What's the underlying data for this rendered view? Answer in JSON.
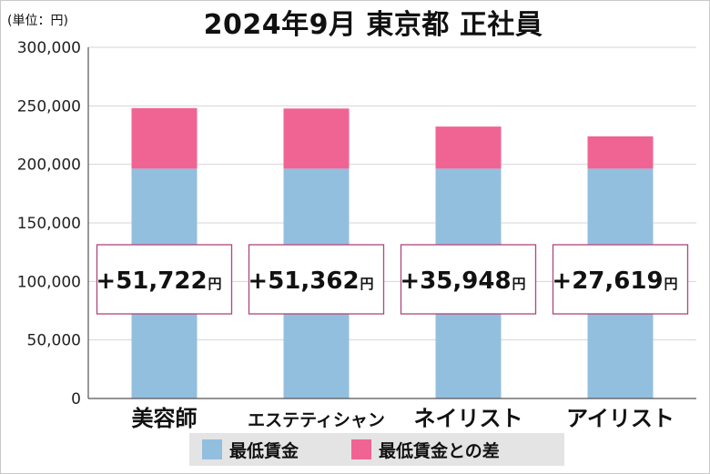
{
  "unit_label": "(単位：円)",
  "title": "2024年9月 東京都 正社員",
  "diff_unit": "円",
  "colors": {
    "base": "#93bfdf",
    "diff": "#f06493",
    "box_border": "#b0457c"
  },
  "legend": [
    {
      "label": "最低賃金",
      "color": "#93bfdf"
    },
    {
      "label": "最低賃金との差",
      "color": "#f06493"
    }
  ],
  "chart_data": {
    "type": "bar",
    "stacked": true,
    "title": "2024年9月 東京都 正社員",
    "categories": [
      "美容師",
      "エステティシャン",
      "ネイリスト",
      "アイリスト"
    ],
    "series": [
      {
        "name": "最低賃金",
        "values": [
          196350,
          196350,
          196350,
          196350
        ]
      },
      {
        "name": "最低賃金との差",
        "values": [
          51722,
          51362,
          35948,
          27619
        ]
      }
    ],
    "diff_labels": [
      "+51,722",
      "+51,362",
      "+35,948",
      "+27,619"
    ],
    "ylim": [
      0,
      300000
    ],
    "yticks": [
      "0",
      "50,000",
      "100,000",
      "150,000",
      "200,000",
      "250,000",
      "300,000"
    ],
    "ytick_values": [
      0,
      50000,
      100000,
      150000,
      200000,
      250000,
      300000
    ],
    "grid": true,
    "legend_position": "bottom"
  }
}
